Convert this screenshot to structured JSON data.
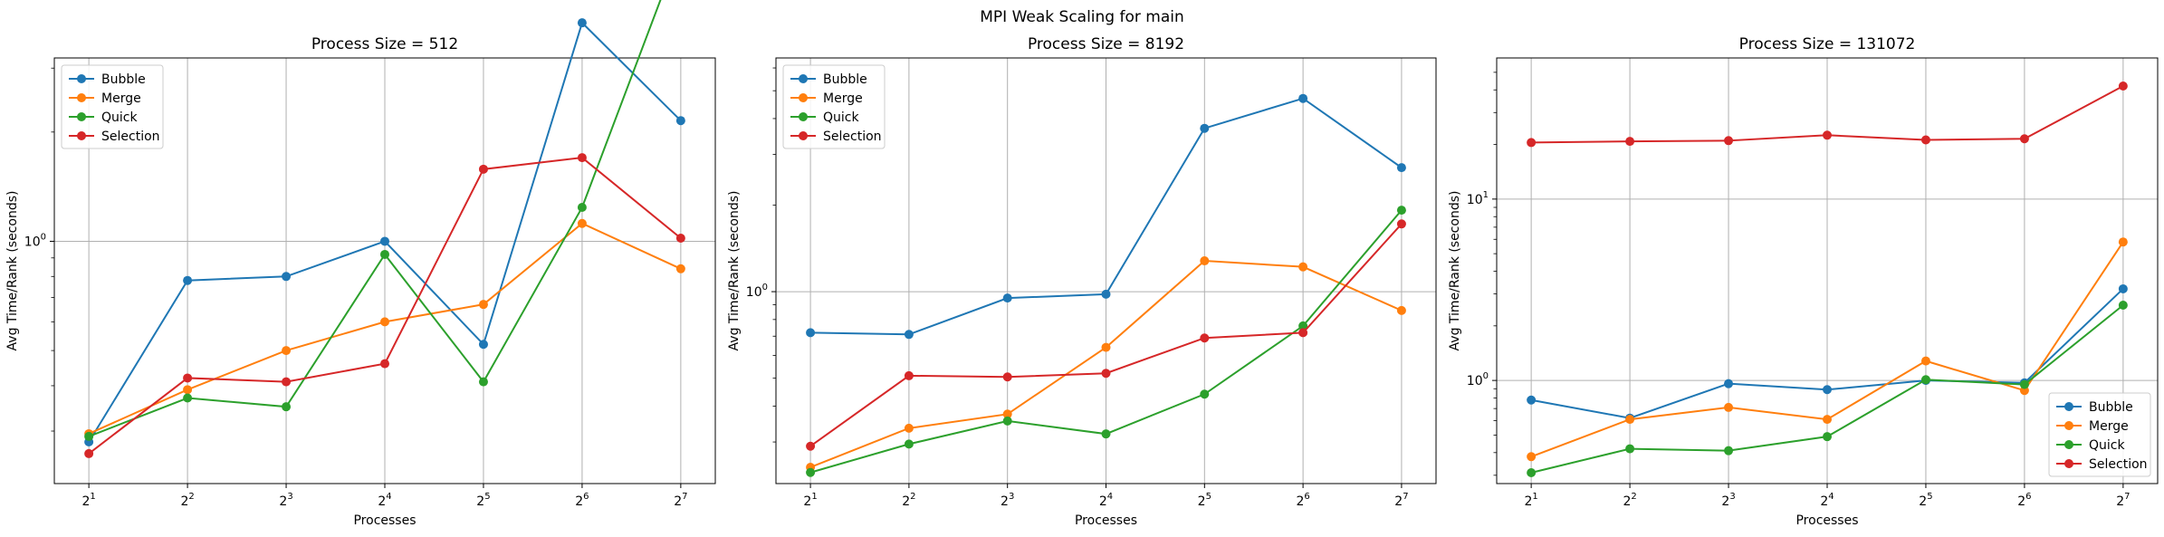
{
  "figure": {
    "suptitle": "MPI Weak Scaling for main"
  },
  "colors": {
    "Bubble": "#1f77b4",
    "Merge": "#ff7f0e",
    "Quick": "#2ca02c",
    "Selection": "#d62728",
    "grid": "#b0b0b0"
  },
  "chart_data": [
    {
      "type": "line",
      "title": "Process Size = 512",
      "xlabel": "Processes",
      "ylabel": "Avg Time/Rank (seconds)",
      "x_base": 2,
      "x_exponents": [
        1,
        2,
        3,
        4,
        5,
        6,
        7
      ],
      "x_tick_labels": [
        "2",
        "2",
        "2",
        "2",
        "2",
        "2",
        "2"
      ],
      "x_tick_exps": [
        "1",
        "2",
        "3",
        "4",
        "5",
        "6",
        "7"
      ],
      "y_scale": "log",
      "ylim": [
        0.215,
        3.2
      ],
      "y_ticks": [
        {
          "value": 1,
          "base": "10",
          "exp": "0"
        }
      ],
      "legend": "upper left",
      "grid": true,
      "series": [
        {
          "name": "Bubble",
          "values": [
            0.28,
            0.78,
            0.8,
            1.0,
            0.52,
            4.0,
            2.15
          ]
        },
        {
          "name": "Merge",
          "values": [
            0.295,
            0.39,
            0.5,
            0.6,
            0.67,
            1.12,
            0.84
          ]
        },
        {
          "name": "Quick",
          "values": [
            0.29,
            0.37,
            0.35,
            0.92,
            0.41,
            1.24,
            6.5
          ]
        },
        {
          "name": "Selection",
          "values": [
            0.26,
            0.42,
            0.41,
            0.46,
            1.58,
            1.7,
            1.02
          ]
        }
      ]
    },
    {
      "type": "line",
      "title": "Process Size = 8192",
      "xlabel": "Processes",
      "ylabel": "Avg Time/Rank (seconds)",
      "x_base": 2,
      "x_exponents": [
        1,
        2,
        3,
        4,
        5,
        6,
        7
      ],
      "x_tick_labels": [
        "2",
        "2",
        "2",
        "2",
        "2",
        "2",
        "2"
      ],
      "x_tick_exps": [
        "1",
        "2",
        "3",
        "4",
        "5",
        "6",
        "7"
      ],
      "y_scale": "log",
      "ylim": [
        0.215,
        6.5
      ],
      "y_ticks": [
        {
          "value": 1,
          "base": "10",
          "exp": "0"
        }
      ],
      "legend": "upper left",
      "grid": true,
      "series": [
        {
          "name": "Bubble",
          "values": [
            0.72,
            0.71,
            0.95,
            0.98,
            3.7,
            4.7,
            2.7
          ]
        },
        {
          "name": "Merge",
          "values": [
            0.245,
            0.335,
            0.375,
            0.64,
            1.28,
            1.22,
            0.86
          ]
        },
        {
          "name": "Quick",
          "values": [
            0.235,
            0.295,
            0.355,
            0.32,
            0.44,
            0.76,
            1.92
          ]
        },
        {
          "name": "Selection",
          "values": [
            0.29,
            0.51,
            0.505,
            0.52,
            0.69,
            0.72,
            1.72
          ]
        }
      ]
    },
    {
      "type": "line",
      "title": "Process Size = 131072",
      "xlabel": "Processes",
      "ylabel": "Avg Time/Rank (seconds)",
      "x_base": 2,
      "x_exponents": [
        1,
        2,
        3,
        4,
        5,
        6,
        7
      ],
      "x_tick_labels": [
        "2",
        "2",
        "2",
        "2",
        "2",
        "2",
        "2"
      ],
      "x_tick_exps": [
        "1",
        "2",
        "3",
        "4",
        "5",
        "6",
        "7"
      ],
      "y_scale": "log",
      "ylim": [
        0.27,
        60
      ],
      "y_ticks": [
        {
          "value": 1,
          "base": "10",
          "exp": "0"
        },
        {
          "value": 10,
          "base": "10",
          "exp": "1"
        }
      ],
      "legend": "lower right",
      "grid": true,
      "series": [
        {
          "name": "Bubble",
          "values": [
            0.78,
            0.62,
            0.96,
            0.89,
            1.0,
            0.97,
            3.2
          ]
        },
        {
          "name": "Merge",
          "values": [
            0.38,
            0.61,
            0.71,
            0.61,
            1.28,
            0.88,
            5.8
          ]
        },
        {
          "name": "Quick",
          "values": [
            0.31,
            0.42,
            0.41,
            0.49,
            1.01,
            0.95,
            2.6
          ]
        },
        {
          "name": "Selection",
          "values": [
            20.5,
            20.8,
            21.0,
            22.5,
            21.2,
            21.5,
            42.0
          ]
        }
      ]
    }
  ]
}
